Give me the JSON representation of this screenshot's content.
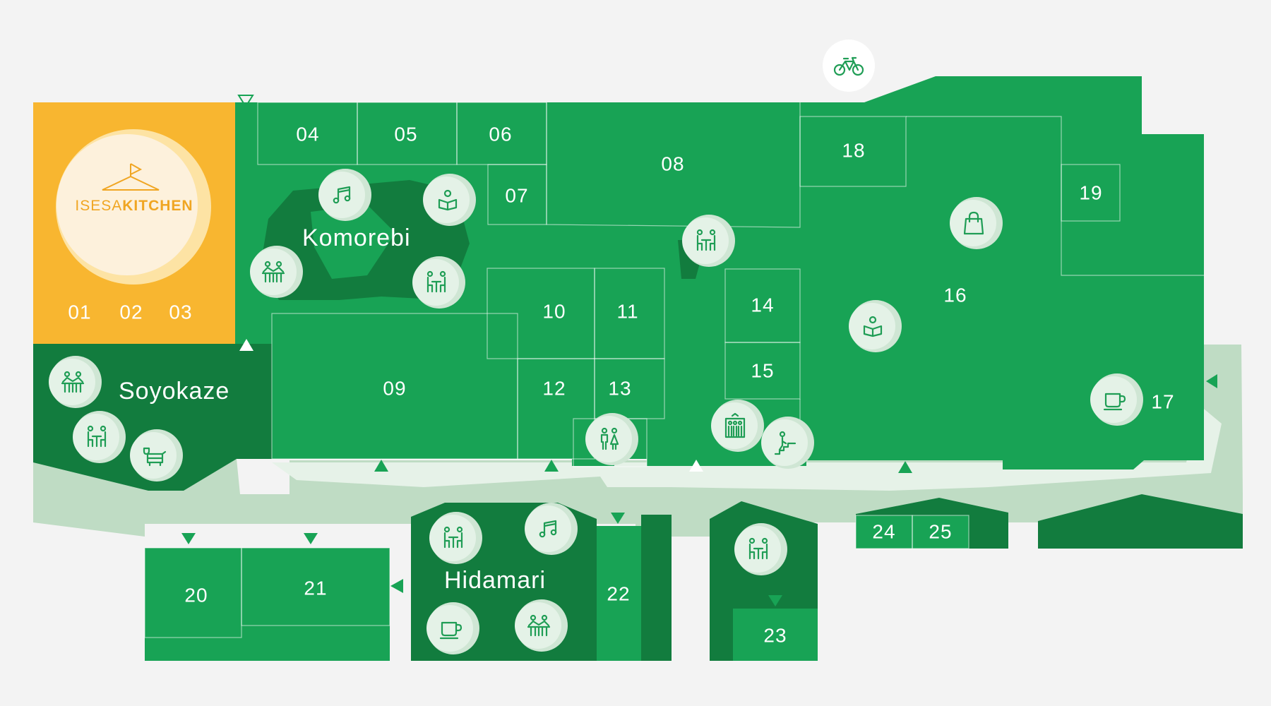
{
  "colors": {
    "background": "#f3f3f3",
    "unit_green": "#18a355",
    "zone_dark_green": "#127c3e",
    "corridor_light": "#bfdcc4",
    "kitchen_orange": "#f8b630",
    "icon_green": "#1f9d55",
    "icon_bg": "#d6eadb"
  },
  "kitchen": {
    "brand_light": "ISESA",
    "brand_bold": "KITCHEN",
    "logo_icon": "flag-hanger-icon",
    "units": [
      "01",
      "02",
      "03"
    ]
  },
  "zones": {
    "komorebi": "Komorebi",
    "soyokaze": "Soyokaze",
    "hidamari": "Hidamari"
  },
  "units": {
    "u04": "04",
    "u05": "05",
    "u06": "06",
    "u07": "07",
    "u08": "08",
    "u09": "09",
    "u10": "10",
    "u11": "11",
    "u12": "12",
    "u13": "13",
    "u14": "14",
    "u15": "15",
    "u16": "16",
    "u17": "17",
    "u18": "18",
    "u19": "19",
    "u20": "20",
    "u21": "21",
    "u22": "22",
    "u23": "23",
    "u24": "24",
    "u25": "25"
  },
  "icons": {
    "bicycle": "bicycle-icon",
    "music": "music-notes-icon",
    "reading": "reading-person-icon",
    "picnic_table": "picnic-table-icon",
    "bench": "bench-seating-icon",
    "table_chat": "table-chat-icon",
    "shopping_bag": "shopping-bag-icon",
    "coffee": "coffee-cup-icon",
    "restroom": "restroom-icon",
    "elevator": "elevator-icon",
    "stairs": "stairs-icon",
    "dog": "dog-icon"
  },
  "entrance_marker": "entrance-arrow-icon"
}
